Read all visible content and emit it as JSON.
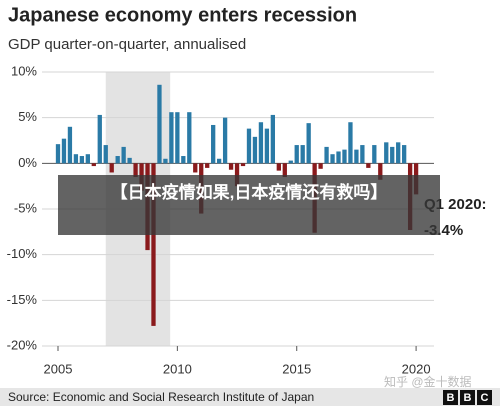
{
  "chart_data": {
    "type": "bar",
    "title": "Japanese economy enters recession",
    "subtitle": "GDP quarter-on-quarter, annualised",
    "x": [
      2005,
      2005.25,
      2005.5,
      2005.75,
      2006,
      2006.25,
      2006.5,
      2006.75,
      2007,
      2007.25,
      2007.5,
      2007.75,
      2008,
      2008.25,
      2008.5,
      2008.75,
      2009,
      2009.25,
      2009.5,
      2009.75,
      2010,
      2010.25,
      2010.5,
      2010.75,
      2011,
      2011.25,
      2011.5,
      2011.75,
      2012,
      2012.25,
      2012.5,
      2012.75,
      2013,
      2013.25,
      2013.5,
      2013.75,
      2014,
      2014.25,
      2014.5,
      2014.75,
      2015,
      2015.25,
      2015.5,
      2015.75,
      2016,
      2016.25,
      2016.5,
      2016.75,
      2017,
      2017.25,
      2017.5,
      2017.75,
      2018,
      2018.25,
      2018.5,
      2018.75,
      2019,
      2019.25,
      2019.5,
      2019.75,
      2020
    ],
    "values": [
      2.1,
      2.7,
      4.0,
      1.0,
      0.8,
      1.0,
      -0.3,
      5.3,
      2.0,
      -1.0,
      0.8,
      1.8,
      0.6,
      -1.5,
      -3.0,
      -9.5,
      -17.8,
      8.6,
      0.5,
      5.6,
      5.6,
      0.8,
      5.6,
      -1.0,
      -5.5,
      -0.5,
      4.2,
      0.5,
      5.0,
      -0.7,
      -2.5,
      -0.3,
      3.8,
      2.9,
      4.5,
      3.8,
      5.3,
      -0.8,
      -1.5,
      0.3,
      2.0,
      2.0,
      4.4,
      -7.6,
      -0.6,
      1.8,
      1.0,
      1.3,
      1.5,
      4.5,
      1.5,
      2.0,
      -0.5,
      2.0,
      -1.8,
      2.3,
      1.8,
      2.3,
      2.0,
      -7.3,
      -3.4
    ],
    "positive_color": "#2a7aa6",
    "negative_color": "#8a1a1c",
    "highlight_color": "#e3e3e3",
    "highlight_x": [
      2007.0,
      2009.7
    ],
    "xlim": [
      2004.33,
      2020.75
    ],
    "xticks": [
      2005,
      2010,
      2015,
      2020
    ],
    "ylim": [
      -20,
      10
    ],
    "yticks": [
      {
        "value": 10,
        "label": "10%"
      },
      {
        "value": 5,
        "label": "5%"
      },
      {
        "value": 0,
        "label": "0%"
      },
      {
        "value": -5,
        "label": "-5%"
      },
      {
        "value": -10,
        "label": "-10%"
      },
      {
        "value": -15,
        "label": "-15%"
      },
      {
        "value": -20,
        "label": "-20%"
      }
    ],
    "grid": true,
    "annotation": [
      "Q1 2020:",
      "-3.4%"
    ],
    "source": "Source: Economic and Social Research Institute of Japan",
    "logo": [
      "B",
      "B",
      "C"
    ],
    "overlay_text": "【日本疫情如果,日本疫情还有救吗】",
    "watermark": "知乎 @金十数据"
  }
}
